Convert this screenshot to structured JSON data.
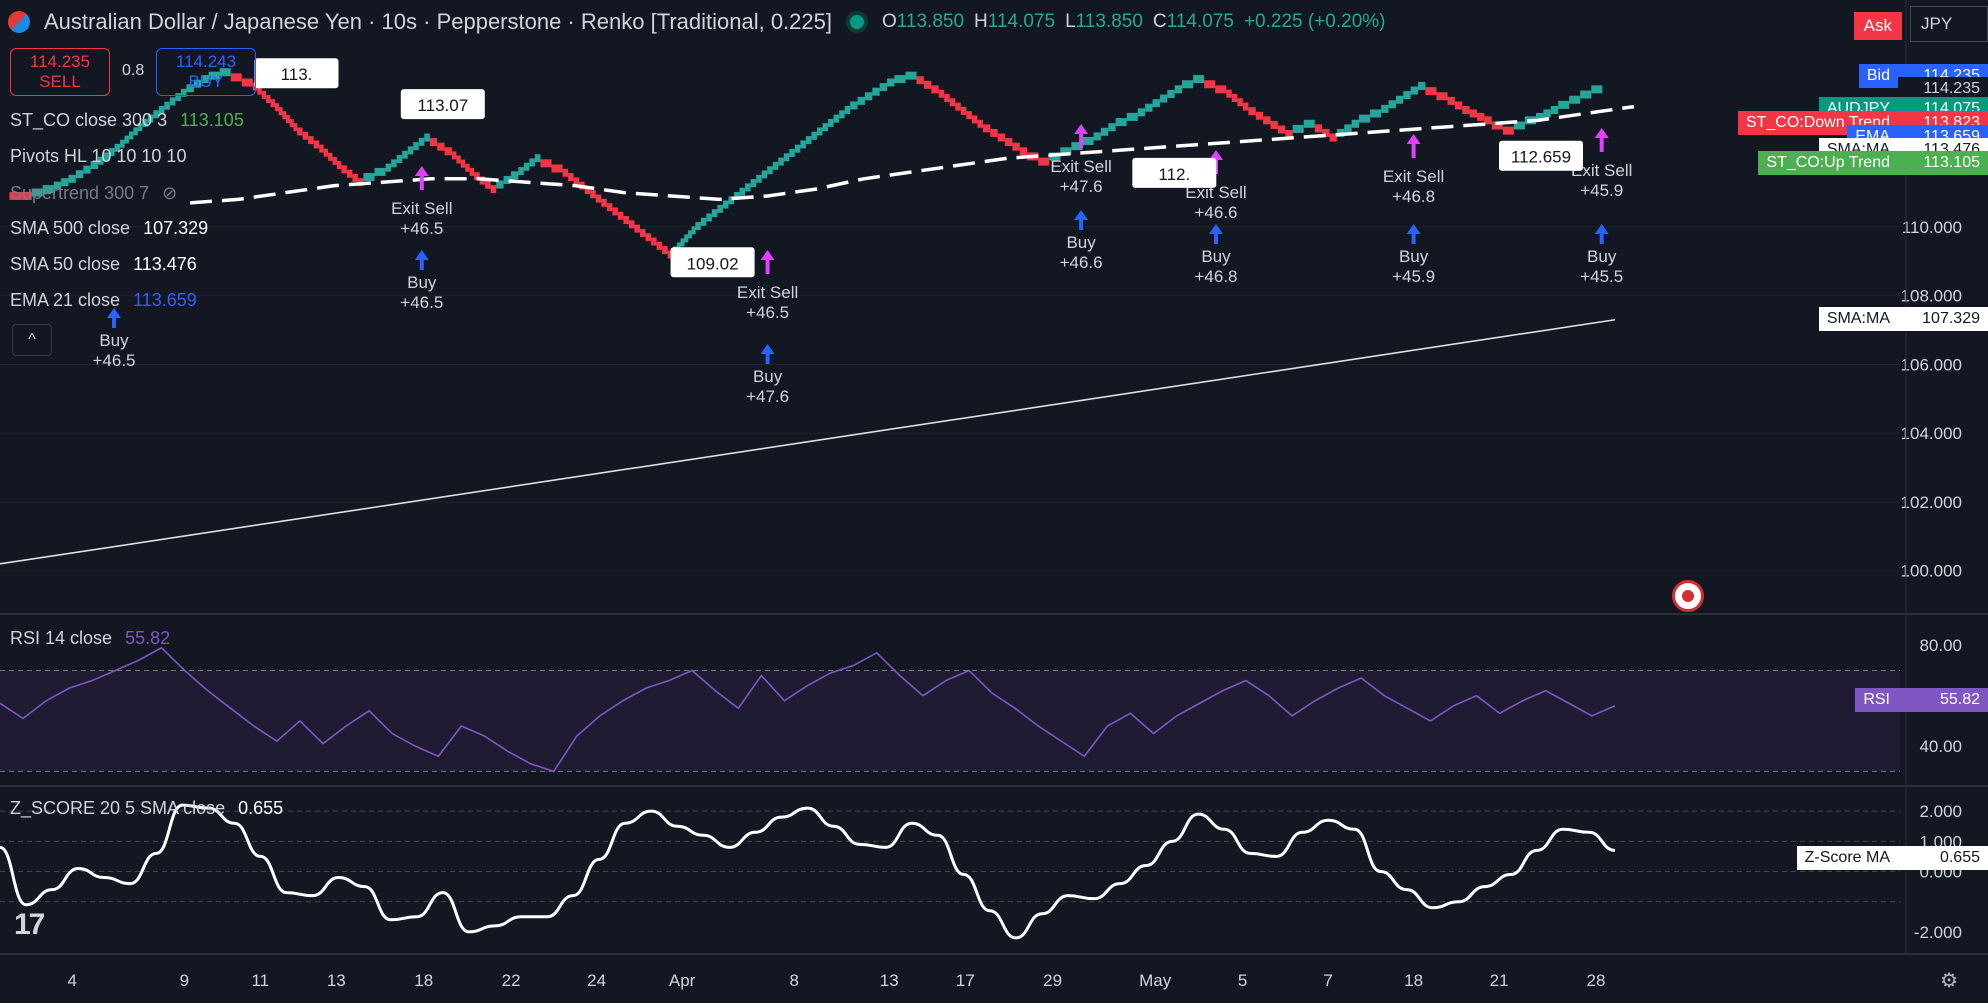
{
  "header": {
    "title": "Australian Dollar / Japanese Yen · 10s · Pepperstone · Renko [Traditional, 0.225]",
    "ohlc": {
      "o_label": "O",
      "o": "113.850",
      "h_label": "H",
      "h": "114.075",
      "l_label": "L",
      "l": "113.850",
      "c_label": "C",
      "c": "114.075",
      "change": "+0.225 (+0.20%)"
    }
  },
  "trade": {
    "sell_price": "114.235",
    "sell_label": "SELL",
    "spread": "0.8",
    "buy_price": "114.243",
    "buy_label": "BUY"
  },
  "legend": {
    "st_co": {
      "label": "ST_CO close 300 3",
      "value": "113.105"
    },
    "pivots": {
      "label": "Pivots HL 10 10 10 10"
    },
    "supertrend": {
      "label": "Supertrend 300 7"
    },
    "sma500": {
      "label": "SMA 500 close",
      "value": "107.329"
    },
    "sma50": {
      "label": "SMA 50 close",
      "value": "113.476"
    },
    "ema21": {
      "label": "EMA 21 close",
      "value": "113.659"
    }
  },
  "top_right": {
    "ask": "Ask",
    "symbol": "JPY"
  },
  "price_tags": [
    {
      "name": "Bid",
      "price": "114.235",
      "bg": "#2962ff",
      "fg": "#ffffff",
      "y": 114.39
    },
    {
      "name": "",
      "price": "114.235",
      "bg": "#131722",
      "fg": "#d1d4dc",
      "y": 114.0
    },
    {
      "name": "AUDJPY",
      "price": "114.075",
      "bg": "#089981",
      "fg": "#ffffff",
      "y": 113.44
    },
    {
      "name": "ST_CO:Down Trend",
      "price": "113.823",
      "bg": "#f23645",
      "fg": "#ffffff",
      "y": 113.02
    },
    {
      "name": "EMA",
      "price": "113.659",
      "bg": "#2962ff",
      "fg": "#ffffff",
      "y": 112.62
    },
    {
      "name": "SMA:MA",
      "price": "113.476",
      "bg": "#ffffff",
      "fg": "#131722",
      "y": 112.24
    },
    {
      "name": "ST_CO:Up Trend",
      "price": "113.105",
      "bg": "#4caf50",
      "fg": "#ffffff",
      "y": 111.85
    },
    {
      "name": "SMA:MA",
      "price": "107.329",
      "bg": "#ffffff",
      "fg": "#131722",
      "y": 107.329
    }
  ],
  "rsi": {
    "label": "RSI 14 close",
    "value": "55.82",
    "tag": "RSI",
    "tag_color": "#7e57c2"
  },
  "zscore": {
    "label": "Z_SCORE 20 5 SMA close",
    "value": "0.655",
    "tag": "Z-Score MA"
  },
  "chart_data": {
    "type": "line",
    "main": {
      "ylim": [
        98.8,
        116.6
      ],
      "yticks": [
        "100.000",
        "102.000",
        "104.000",
        "106.000",
        "108.000",
        "110.000"
      ],
      "renko_path": [
        111.0,
        110.9,
        111.1,
        111.4,
        111.8,
        112.3,
        112.9,
        113.4,
        113.9,
        114.3,
        114.5,
        114.2,
        113.6,
        112.9,
        112.4,
        111.8,
        111.3,
        111.6,
        112.1,
        112.6,
        112.2,
        111.6,
        111.1,
        111.5,
        112.0,
        111.7,
        111.2,
        110.7,
        110.2,
        109.7,
        109.2,
        109.9,
        110.4,
        110.9,
        111.4,
        111.9,
        112.4,
        112.9,
        113.4,
        113.8,
        114.2,
        114.4,
        114.0,
        113.5,
        113.0,
        112.6,
        112.2,
        111.9,
        112.2,
        112.5,
        112.9,
        113.2,
        113.6,
        114.0,
        114.3,
        114.0,
        113.5,
        113.1,
        112.7,
        113.0,
        112.6,
        113.0,
        113.3,
        113.7,
        114.1,
        113.8,
        113.4,
        113.1,
        112.8,
        113.1,
        113.4,
        113.7,
        114.0
      ],
      "sma50": [
        110.7,
        110.8,
        111.0,
        111.2,
        111.3,
        111.4,
        111.4,
        111.3,
        111.2,
        111.0,
        110.9,
        110.8,
        110.9,
        111.1,
        111.4,
        111.6,
        111.8,
        112.0,
        112.1,
        112.2,
        112.3,
        112.4,
        112.5,
        112.6,
        112.7,
        112.8,
        112.9,
        113.0,
        113.1,
        113.3,
        113.5
      ],
      "sma500": [
        100.2,
        107.3
      ],
      "signals": [
        {
          "kind": "buy",
          "text": "Buy",
          "value": "+46.5",
          "x": 0.06
        },
        {
          "kind": "buy",
          "text": "Buy",
          "value": "+46.5",
          "x": 0.222
        },
        {
          "kind": "exit",
          "text": "Exit Sell",
          "value": "+46.5",
          "x": 0.222
        },
        {
          "kind": "buy",
          "text": "Buy",
          "value": "+47.6",
          "x": 0.404
        },
        {
          "kind": "exit",
          "text": "Exit Sell",
          "value": "+46.5",
          "x": 0.404
        },
        {
          "kind": "buy",
          "text": "Buy",
          "value": "+46.6",
          "x": 0.569
        },
        {
          "kind": "exit",
          "text": "Exit Sell",
          "value": "+47.6",
          "x": 0.569
        },
        {
          "kind": "buy",
          "text": "Buy",
          "value": "+46.8",
          "x": 0.64
        },
        {
          "kind": "exit",
          "text": "Exit Sell",
          "value": "+46.6",
          "x": 0.64
        },
        {
          "kind": "buy",
          "text": "Buy",
          "value": "+45.9",
          "x": 0.744
        },
        {
          "kind": "exit",
          "text": "Exit Sell",
          "value": "+46.8",
          "x": 0.744
        },
        {
          "kind": "buy",
          "text": "Buy",
          "value": "+45.5",
          "x": 0.843
        },
        {
          "kind": "exit",
          "text": "Exit Sell",
          "value": "+45.9",
          "x": 0.843
        }
      ],
      "price_labels": [
        {
          "text": "113.",
          "x": 0.155,
          "y": 114.5
        },
        {
          "text": "113.07",
          "x": 0.232,
          "y": 113.6
        },
        {
          "text": "109.02",
          "x": 0.374,
          "y": 109.0
        },
        {
          "text": "112.",
          "x": 0.617,
          "y": 111.6
        },
        {
          "text": "112.659",
          "x": 0.81,
          "y": 112.1
        }
      ]
    },
    "rsi": {
      "ylim": [
        25,
        90
      ],
      "yticks": [
        "40.00",
        "60.00",
        "80.00"
      ],
      "bands": [
        30,
        70
      ],
      "values": [
        57,
        51,
        58,
        63,
        66,
        70,
        74,
        79,
        70,
        62,
        55,
        48,
        42,
        50,
        41,
        48,
        54,
        45,
        40,
        36,
        48,
        44,
        38,
        33,
        30,
        44,
        52,
        58,
        63,
        66,
        70,
        62,
        55,
        68,
        58,
        64,
        69,
        72,
        77,
        68,
        60,
        66,
        70,
        61,
        55,
        48,
        42,
        36,
        48,
        53,
        45,
        52,
        57,
        62,
        66,
        60,
        52,
        58,
        63,
        67,
        60,
        55,
        50,
        56,
        60,
        53,
        58,
        62,
        57,
        52,
        56
      ]
    },
    "zscore": {
      "ylim": [
        -2.6,
        2.7
      ],
      "yticks": [
        "-2.000",
        "0.000",
        "1.000",
        "2.000"
      ],
      "bands": [
        -1,
        0,
        1,
        2
      ],
      "values": [
        0.8,
        -1.1,
        -0.6,
        0.1,
        -0.2,
        -0.4,
        0.6,
        2.2,
        2.1,
        1.6,
        0.5,
        -0.7,
        -0.8,
        -0.2,
        -0.5,
        -1.6,
        -1.5,
        -0.7,
        -2.0,
        -1.8,
        -1.5,
        -1.5,
        -0.8,
        0.4,
        1.6,
        2.0,
        1.5,
        1.2,
        0.8,
        1.3,
        1.8,
        2.1,
        1.5,
        0.9,
        0.8,
        1.6,
        1.2,
        -0.1,
        -1.3,
        -2.2,
        -1.4,
        -0.8,
        -0.9,
        -0.4,
        0.2,
        1.0,
        1.9,
        1.4,
        0.6,
        0.5,
        1.3,
        1.7,
        1.4,
        0.0,
        -0.6,
        -1.2,
        -1.0,
        -0.5,
        -0.1,
        0.7,
        1.4,
        1.3,
        0.7
      ]
    },
    "x_ticks": [
      {
        "label": "4",
        "x": 0.038
      },
      {
        "label": "9",
        "x": 0.097
      },
      {
        "label": "11",
        "x": 0.137
      },
      {
        "label": "13",
        "x": 0.177
      },
      {
        "label": "18",
        "x": 0.223
      },
      {
        "label": "22",
        "x": 0.269
      },
      {
        "label": "24",
        "x": 0.314
      },
      {
        "label": "Apr",
        "x": 0.359
      },
      {
        "label": "8",
        "x": 0.418
      },
      {
        "label": "13",
        "x": 0.468
      },
      {
        "label": "17",
        "x": 0.508
      },
      {
        "label": "29",
        "x": 0.554
      },
      {
        "label": "May",
        "x": 0.608
      },
      {
        "label": "5",
        "x": 0.654
      },
      {
        "label": "7",
        "x": 0.699
      },
      {
        "label": "18",
        "x": 0.744
      },
      {
        "label": "21",
        "x": 0.789
      },
      {
        "label": "28",
        "x": 0.84
      }
    ]
  }
}
